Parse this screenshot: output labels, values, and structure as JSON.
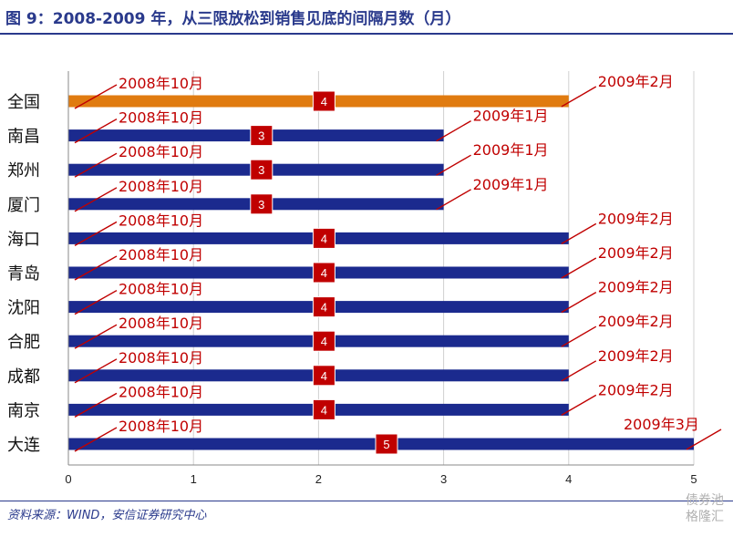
{
  "title": "图 9：2008-2009 年，从三限放松到销售见底的间隔月数（月）",
  "source": "资料来源：WIND，安信证券研究中心",
  "watermark": {
    "line1": "债券池",
    "line2": "格隆汇"
  },
  "colors": {
    "bar": "#1b2a8e",
    "highlight": "#e07b10",
    "label_box": "#c00000",
    "annotation": "#c00000"
  },
  "chart_data": {
    "type": "bar",
    "orientation": "horizontal",
    "categories": [
      "全国",
      "南昌",
      "郑州",
      "厦门",
      "海口",
      "青岛",
      "沈阳",
      "合肥",
      "成都",
      "南京",
      "大连"
    ],
    "values": [
      4,
      3,
      3,
      3,
      4,
      4,
      4,
      4,
      4,
      4,
      5
    ],
    "start_labels": [
      "2008年10月",
      "2008年10月",
      "2008年10月",
      "2008年10月",
      "2008年10月",
      "2008年10月",
      "2008年10月",
      "2008年10月",
      "2008年10月",
      "2008年10月",
      "2008年10月"
    ],
    "end_labels": [
      "2009年2月",
      "2009年1月",
      "2009年1月",
      "2009年1月",
      "2009年2月",
      "2009年2月",
      "2009年2月",
      "2009年2月",
      "2009年2月",
      "2009年2月",
      "2009年3月"
    ],
    "xlim": [
      0,
      5
    ],
    "xticks": [
      "0",
      "1",
      "2",
      "3",
      "4",
      "5"
    ],
    "grid": true
  }
}
